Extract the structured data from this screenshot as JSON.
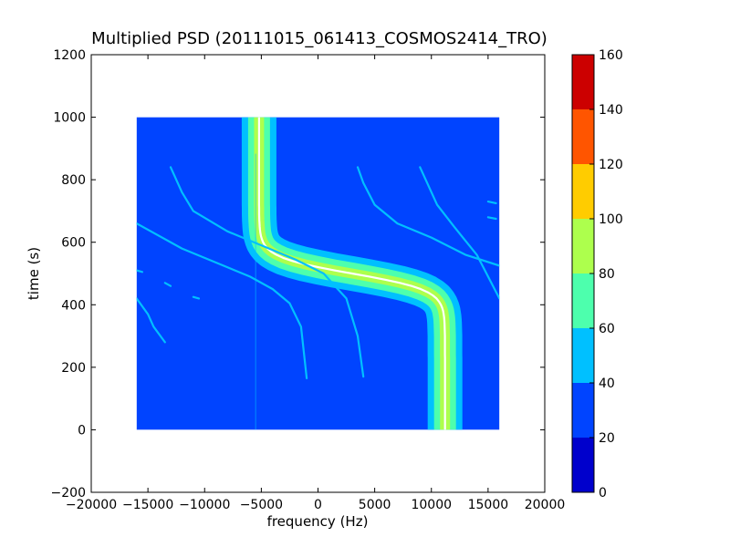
{
  "chart_data": {
    "type": "heatmap",
    "title": "Multiplied PSD (20111015_061413_COSMOS2414_TRO)",
    "xlabel": "frequency (Hz)",
    "ylabel": "time (s)",
    "xlim": [
      -20000,
      20000
    ],
    "ylim": [
      -200,
      1200
    ],
    "x_ticks": [
      -20000,
      -15000,
      -10000,
      -5000,
      0,
      5000,
      10000,
      15000,
      20000
    ],
    "x_tick_labels": [
      "−20000",
      "−15000",
      "−10000",
      "−5000",
      "0",
      "5000",
      "10000",
      "15000",
      "20000"
    ],
    "y_ticks": [
      -200,
      0,
      200,
      400,
      600,
      800,
      1000,
      1200
    ],
    "y_tick_labels": [
      "−200",
      "0",
      "200",
      "400",
      "600",
      "800",
      "1000",
      "1200"
    ],
    "data_extent": {
      "x": [
        -16000,
        16000
      ],
      "y": [
        0,
        1000
      ]
    },
    "grid": false,
    "colorbar": {
      "levels": [
        0,
        20,
        40,
        60,
        80,
        100,
        120,
        140,
        160
      ],
      "tick_labels": [
        "0",
        "20",
        "40",
        "60",
        "80",
        "100",
        "120",
        "140",
        "160"
      ],
      "colors": [
        "#0000cc",
        "#0044ff",
        "#00c0ff",
        "#4dffad",
        "#adff4d",
        "#ffcc00",
        "#ff5500",
        "#cc0000"
      ]
    },
    "background_level": 30,
    "traces": [
      {
        "kind": "main_doppler",
        "center_time": 500,
        "center_freq": 3000,
        "half_span": 8200,
        "steepness": 0.019,
        "core_level": 100,
        "halo_level": 75,
        "outer_level": 55
      },
      {
        "kind": "harmonic",
        "points": [
          [
            -16000,
            660
          ],
          [
            -12000,
            580
          ],
          [
            -9000,
            535
          ],
          [
            -6000,
            490
          ],
          [
            -4000,
            450
          ],
          [
            -2500,
            405
          ],
          [
            -1500,
            330
          ],
          [
            -1000,
            165
          ]
        ]
      },
      {
        "kind": "harmonic",
        "points": [
          [
            -16000,
            420
          ],
          [
            -15000,
            370
          ],
          [
            -14500,
            330
          ],
          [
            -13500,
            280
          ]
        ]
      },
      {
        "kind": "harmonic",
        "points": [
          [
            -13000,
            840
          ],
          [
            -12000,
            760
          ],
          [
            -11000,
            700
          ],
          [
            -8000,
            635
          ],
          [
            -5000,
            590
          ],
          [
            -2000,
            545
          ],
          [
            500,
            500
          ],
          [
            1500,
            460
          ],
          [
            2500,
            420
          ],
          [
            3500,
            300
          ],
          [
            4000,
            170
          ]
        ]
      },
      {
        "kind": "harmonic",
        "points": [
          [
            3500,
            840
          ],
          [
            4000,
            790
          ],
          [
            5000,
            720
          ],
          [
            7000,
            660
          ],
          [
            10000,
            615
          ],
          [
            13000,
            560
          ],
          [
            16000,
            525
          ]
        ]
      },
      {
        "kind": "harmonic",
        "points": [
          [
            9000,
            840
          ],
          [
            9500,
            800
          ],
          [
            10500,
            720
          ],
          [
            12000,
            650
          ],
          [
            14000,
            560
          ],
          [
            16000,
            420
          ]
        ]
      },
      {
        "kind": "harmonic",
        "points": [
          [
            -16000,
            510
          ],
          [
            -15500,
            505
          ]
        ]
      },
      {
        "kind": "harmonic",
        "points": [
          [
            -13500,
            470
          ],
          [
            -13000,
            460
          ]
        ]
      },
      {
        "kind": "harmonic",
        "points": [
          [
            -11000,
            425
          ],
          [
            -10500,
            420
          ]
        ]
      },
      {
        "kind": "harmonic",
        "points": [
          [
            15000,
            730
          ],
          [
            15700,
            725
          ]
        ]
      },
      {
        "kind": "harmonic",
        "points": [
          [
            15000,
            680
          ],
          [
            15700,
            675
          ]
        ]
      }
    ]
  }
}
